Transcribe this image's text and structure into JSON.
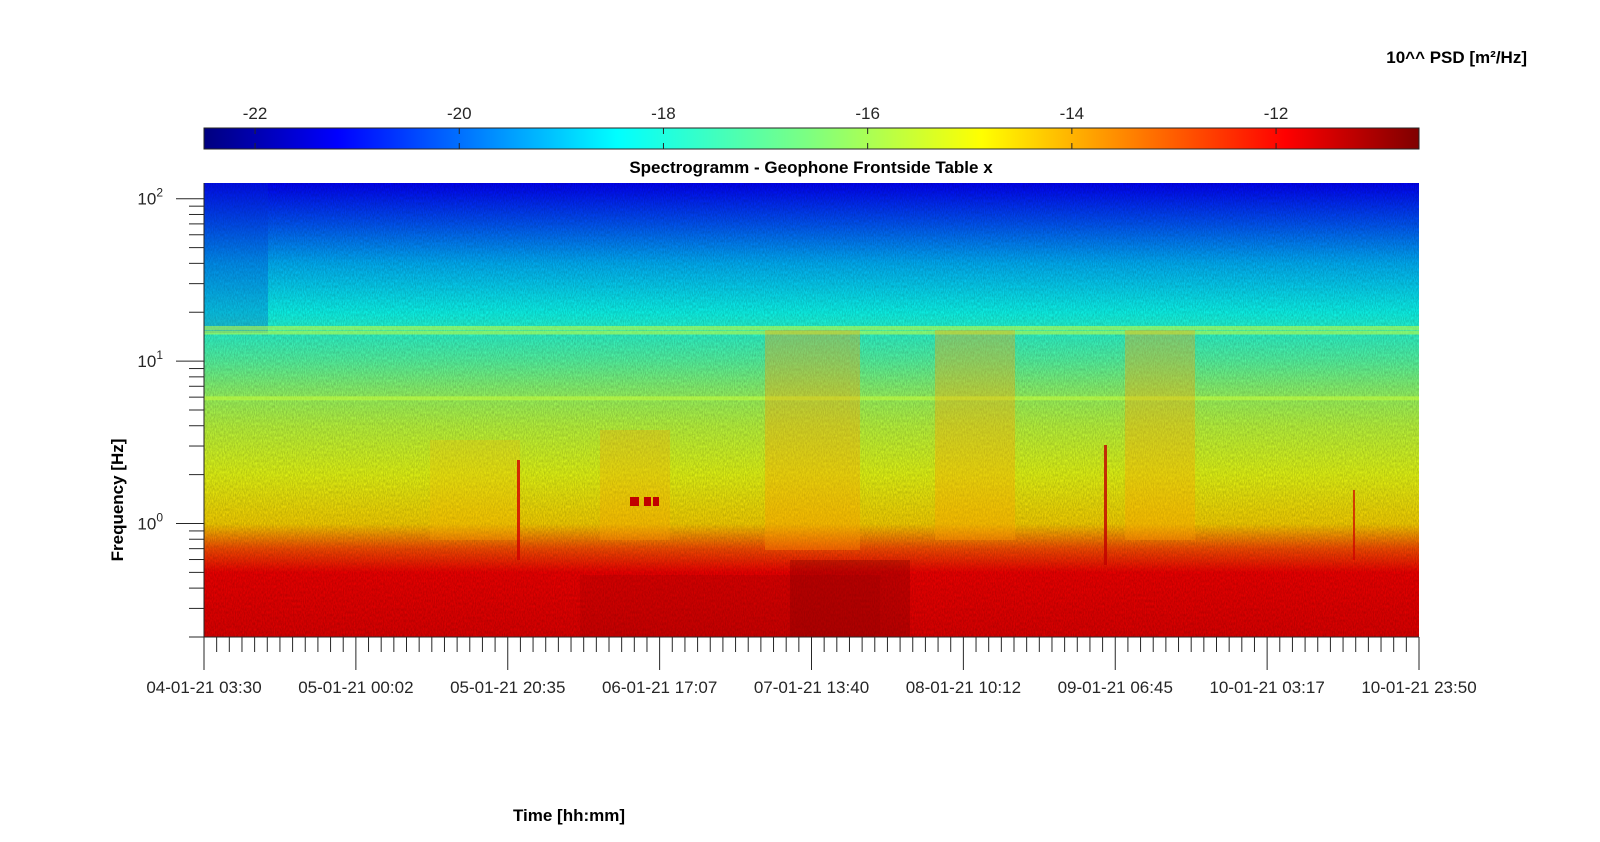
{
  "chart_data": {
    "type": "heatmap",
    "title": "Spectrogramm - Geophone Frontside Table x",
    "xlabel": "Time [hh:mm]",
    "ylabel": "Frequency [Hz]",
    "x_ticks": [
      "04-01-21 03:30",
      "05-01-21 00:02",
      "05-01-21 20:35",
      "06-01-21 17:07",
      "07-01-21 13:40",
      "08-01-21 10:12",
      "09-01-21 06:45",
      "10-01-21 03:17",
      "10-01-21 23:50"
    ],
    "y_scale": "log",
    "y_ticks": [
      {
        "base": "10",
        "exp": "0"
      },
      {
        "base": "10",
        "exp": "1"
      },
      {
        "base": "10",
        "exp": "2"
      }
    ],
    "ylim": [
      0.2,
      125
    ],
    "colorbar": {
      "label": "10^^ PSD [m²/Hz]",
      "ticks": [
        "-22",
        "-20",
        "-18",
        "-16",
        "-14",
        "-12"
      ],
      "tick_values": [
        -22,
        -20,
        -18,
        -16,
        -14,
        -12
      ],
      "range": [
        -22.5,
        -10.6
      ],
      "colormap": "jet"
    },
    "psd_profile_by_frequency": [
      {
        "frequency_hz": 0.2,
        "log10_psd": -11.8
      },
      {
        "frequency_hz": 0.5,
        "log10_psd": -12.0
      },
      {
        "frequency_hz": 0.7,
        "log10_psd": -13.0
      },
      {
        "frequency_hz": 1.0,
        "log10_psd": -14.6
      },
      {
        "frequency_hz": 2.0,
        "log10_psd": -15.3
      },
      {
        "frequency_hz": 4.0,
        "log10_psd": -15.8
      },
      {
        "frequency_hz": 6.0,
        "log10_psd": -16.2
      },
      {
        "frequency_hz": 10.0,
        "log10_psd": -17.0
      },
      {
        "frequency_hz": 20.0,
        "log10_psd": -17.9
      },
      {
        "frequency_hz": 40.0,
        "log10_psd": -18.9
      },
      {
        "frequency_hz": 70.0,
        "log10_psd": -20.0
      },
      {
        "frequency_hz": 125.0,
        "log10_psd": -21.0
      }
    ],
    "narrowband_lines_hz": [
      15.0,
      16.0,
      5.9
    ],
    "grid": false
  }
}
